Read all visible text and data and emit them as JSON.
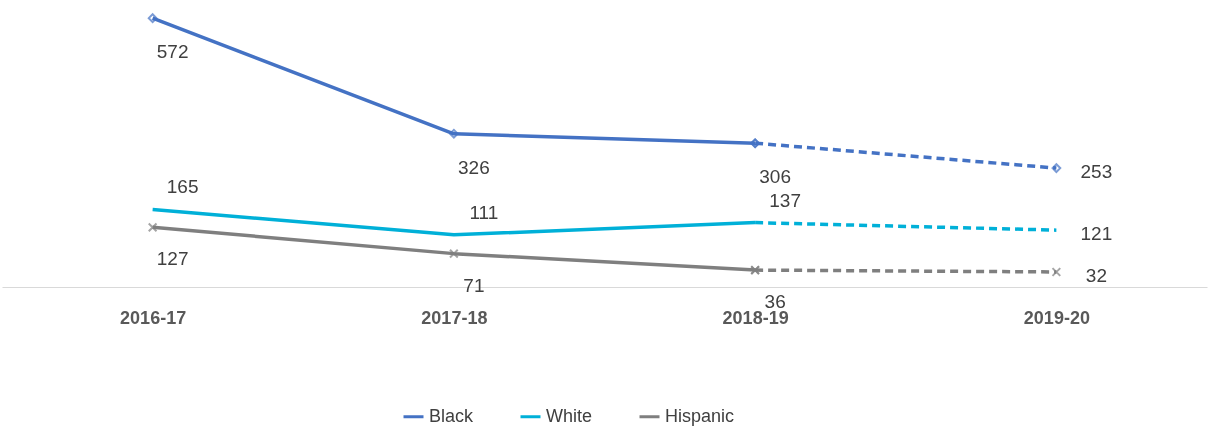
{
  "chart_data": {
    "type": "line",
    "categories": [
      "2016-17",
      "2017-18",
      "2018-19",
      "2019-20"
    ],
    "legend": "bottom",
    "grid": false,
    "series": [
      {
        "name": "Black",
        "color": "#4472c4",
        "marker": "diamond",
        "line_style": "solid",
        "values": [
          572,
          326,
          306,
          null
        ],
        "value_labels": [
          "572",
          "326",
          "306",
          null
        ]
      },
      {
        "color": "#4472c4",
        "marker": "diamond",
        "line_style": "dashed",
        "values": [
          null,
          null,
          306,
          253
        ],
        "value_labels": [
          null,
          null,
          null,
          "253"
        ]
      },
      {
        "name": "White",
        "color": "#00b0d8",
        "marker": "none",
        "line_style": "solid",
        "values": [
          165,
          111,
          137,
          null
        ],
        "value_labels": [
          "165",
          "111",
          "137",
          null
        ]
      },
      {
        "color": "#00b0d8",
        "marker": "none",
        "line_style": "dashed",
        "values": [
          null,
          null,
          137,
          121
        ],
        "value_labels": [
          null,
          null,
          null,
          "121"
        ]
      },
      {
        "name": "Hispanic",
        "color": "#7f7f7f",
        "marker": "cross",
        "line_style": "solid",
        "values": [
          127,
          71,
          36,
          null
        ],
        "value_labels": [
          "127",
          "71",
          "36",
          null
        ]
      },
      {
        "color": "#7f7f7f",
        "marker": "cross",
        "line_style": "dashed",
        "values": [
          null,
          null,
          36,
          32
        ],
        "value_labels": [
          null,
          null,
          null,
          "32"
        ]
      }
    ]
  }
}
